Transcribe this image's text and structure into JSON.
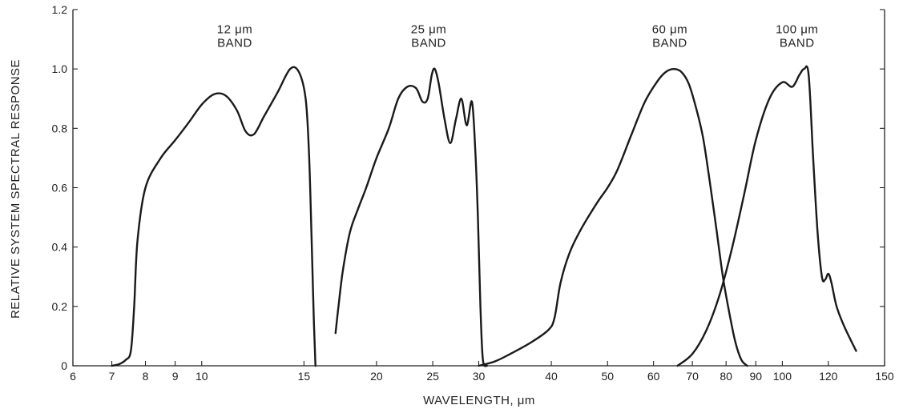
{
  "chart_data": {
    "type": "line",
    "xlabel": "WAVELENGTH, μm",
    "ylabel": "RELATIVE SYSTEM SPECTRAL RESPONSE",
    "x_scale": "log",
    "xlim": [
      6,
      150
    ],
    "ylim": [
      0,
      1.2
    ],
    "x_ticks": [
      6,
      7,
      8,
      9,
      10,
      15,
      20,
      25,
      30,
      40,
      50,
      60,
      70,
      80,
      90,
      100,
      120,
      150
    ],
    "y_ticks": [
      {
        "value": 0,
        "label": "0"
      },
      {
        "value": 0.2,
        "label": "0.2"
      },
      {
        "value": 0.4,
        "label": "0.4"
      },
      {
        "value": 0.6,
        "label": "0.6"
      },
      {
        "value": 0.8,
        "label": "0.8"
      },
      {
        "value": 1.0,
        "label": "1.0"
      },
      {
        "value": 1.2,
        "label": "1.2"
      }
    ],
    "grid": false,
    "series": [
      {
        "name": "12 μm BAND",
        "label_lines": [
          "12 μm",
          "BAND"
        ],
        "label_at": [
          11.4,
          1.12
        ],
        "points": [
          [
            7.0,
            0.0
          ],
          [
            7.2,
            0.005
          ],
          [
            7.4,
            0.02
          ],
          [
            7.55,
            0.05
          ],
          [
            7.65,
            0.2
          ],
          [
            7.75,
            0.42
          ],
          [
            8.0,
            0.6
          ],
          [
            8.5,
            0.7
          ],
          [
            9.0,
            0.76
          ],
          [
            9.5,
            0.82
          ],
          [
            10.0,
            0.88
          ],
          [
            10.5,
            0.915
          ],
          [
            11.0,
            0.91
          ],
          [
            11.5,
            0.86
          ],
          [
            11.9,
            0.79
          ],
          [
            12.3,
            0.78
          ],
          [
            12.8,
            0.84
          ],
          [
            13.5,
            0.92
          ],
          [
            14.2,
            1.0
          ],
          [
            14.7,
            0.99
          ],
          [
            15.1,
            0.9
          ],
          [
            15.3,
            0.72
          ],
          [
            15.45,
            0.45
          ],
          [
            15.6,
            0.15
          ],
          [
            15.7,
            0.0
          ]
        ]
      },
      {
        "name": "25 μm BAND",
        "label_lines": [
          "25 μm",
          "BAND"
        ],
        "label_at": [
          24.6,
          1.12
        ],
        "points": [
          [
            17.0,
            0.11
          ],
          [
            17.2,
            0.2
          ],
          [
            17.5,
            0.32
          ],
          [
            18.0,
            0.45
          ],
          [
            18.6,
            0.53
          ],
          [
            19.2,
            0.6
          ],
          [
            20.0,
            0.7
          ],
          [
            21.0,
            0.8
          ],
          [
            21.8,
            0.9
          ],
          [
            22.6,
            0.94
          ],
          [
            23.4,
            0.935
          ],
          [
            24.0,
            0.89
          ],
          [
            24.5,
            0.9
          ],
          [
            24.9,
            0.98
          ],
          [
            25.2,
            1.0
          ],
          [
            25.6,
            0.95
          ],
          [
            26.2,
            0.83
          ],
          [
            26.8,
            0.75
          ],
          [
            27.4,
            0.83
          ],
          [
            28.0,
            0.9
          ],
          [
            28.6,
            0.81
          ],
          [
            29.2,
            0.89
          ],
          [
            29.6,
            0.72
          ],
          [
            29.9,
            0.5
          ],
          [
            30.2,
            0.2
          ],
          [
            30.5,
            0.02
          ],
          [
            31.0,
            0.0
          ]
        ]
      },
      {
        "name": "60 μm BAND",
        "label_lines": [
          "60 μm",
          "BAND"
        ],
        "label_at": [
          64,
          1.12
        ],
        "points": [
          [
            30.0,
            0.0
          ],
          [
            32.0,
            0.015
          ],
          [
            34.0,
            0.04
          ],
          [
            37.0,
            0.08
          ],
          [
            39.5,
            0.12
          ],
          [
            40.5,
            0.16
          ],
          [
            41.5,
            0.28
          ],
          [
            43.0,
            0.38
          ],
          [
            45.0,
            0.46
          ],
          [
            48.0,
            0.55
          ],
          [
            50.0,
            0.6
          ],
          [
            52.0,
            0.66
          ],
          [
            55.0,
            0.78
          ],
          [
            58.0,
            0.89
          ],
          [
            61.0,
            0.96
          ],
          [
            63.0,
            0.99
          ],
          [
            65.0,
            1.0
          ],
          [
            67.0,
            0.99
          ],
          [
            69.0,
            0.95
          ],
          [
            71.0,
            0.87
          ],
          [
            73.0,
            0.77
          ],
          [
            75.0,
            0.62
          ],
          [
            77.0,
            0.46
          ],
          [
            79.0,
            0.3
          ],
          [
            81.0,
            0.18
          ],
          [
            83.0,
            0.08
          ],
          [
            85.0,
            0.02
          ],
          [
            87.0,
            0.0
          ]
        ]
      },
      {
        "name": "100 μm BAND",
        "label_lines": [
          "100 μm",
          "BAND"
        ],
        "label_at": [
          106,
          1.12
        ],
        "points": [
          [
            66.0,
            0.0
          ],
          [
            70.0,
            0.04
          ],
          [
            74.0,
            0.12
          ],
          [
            78.0,
            0.24
          ],
          [
            82.0,
            0.4
          ],
          [
            86.0,
            0.58
          ],
          [
            90.0,
            0.76
          ],
          [
            95.0,
            0.9
          ],
          [
            100.0,
            0.955
          ],
          [
            104.0,
            0.94
          ],
          [
            107.0,
            0.98
          ],
          [
            109.0,
            1.0
          ],
          [
            111.0,
            0.98
          ],
          [
            113.0,
            0.7
          ],
          [
            115.0,
            0.45
          ],
          [
            117.0,
            0.3
          ],
          [
            118.5,
            0.29
          ],
          [
            120.0,
            0.31
          ],
          [
            121.5,
            0.28
          ],
          [
            124.0,
            0.2
          ],
          [
            128.0,
            0.13
          ],
          [
            134.0,
            0.05
          ]
        ]
      }
    ]
  }
}
